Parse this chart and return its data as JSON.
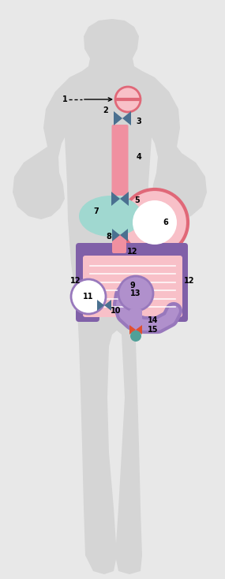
{
  "figure_width": 2.85,
  "figure_height": 7.34,
  "dpi": 100,
  "bg_color": "#e8e8e8",
  "silhouette_color": "#d5d5d5",
  "colors": {
    "pink": "#f090a0",
    "pink_light": "#f8c0c8",
    "pink_dark": "#e06878",
    "blue_dark": "#4a7090",
    "teal": "#a0d8d0",
    "purple": "#8060a8",
    "purple_light": "#b090cc",
    "purple_medium": "#9878bc",
    "orange_red": "#e05030",
    "teal_dark": "#50a098"
  }
}
